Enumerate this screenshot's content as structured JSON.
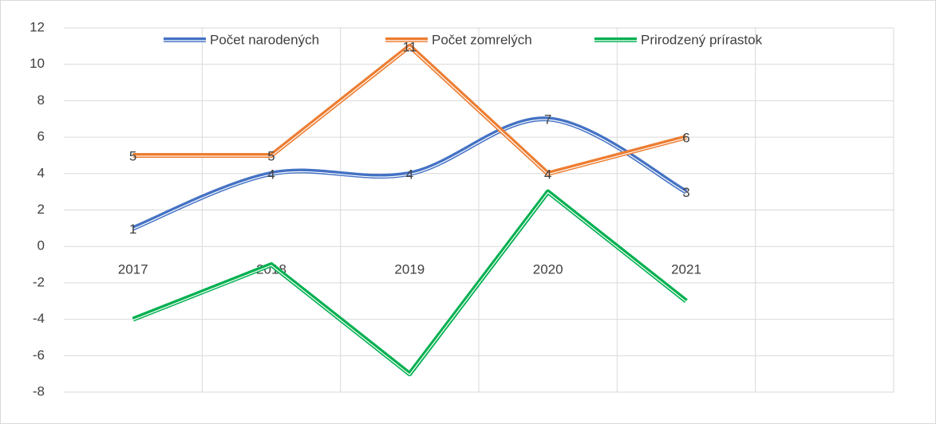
{
  "chart_data": {
    "type": "line",
    "categories": [
      "2017",
      "2018",
      "2019",
      "2020",
      "2021",
      null
    ],
    "series": [
      {
        "name": "Počet narodených",
        "color": "#4472c4",
        "smooth": true,
        "data_labels": true,
        "values": [
          1,
          4,
          4,
          7,
          3,
          null
        ]
      },
      {
        "name": "Počet zomrelých",
        "color": "#ed7d31",
        "smooth": false,
        "data_labels": true,
        "values": [
          5,
          5,
          11,
          4,
          6,
          null
        ]
      },
      {
        "name": "Prirodzený prírastok",
        "color": "#00b050",
        "smooth": false,
        "data_labels": false,
        "values": [
          -4,
          -1,
          -7,
          3,
          -3,
          null
        ]
      }
    ],
    "ylim": [
      -8,
      12
    ],
    "yticks": [
      -8,
      -6,
      -4,
      -2,
      0,
      2,
      4,
      6,
      8,
      10,
      12
    ],
    "grid": true,
    "legend": "top"
  }
}
